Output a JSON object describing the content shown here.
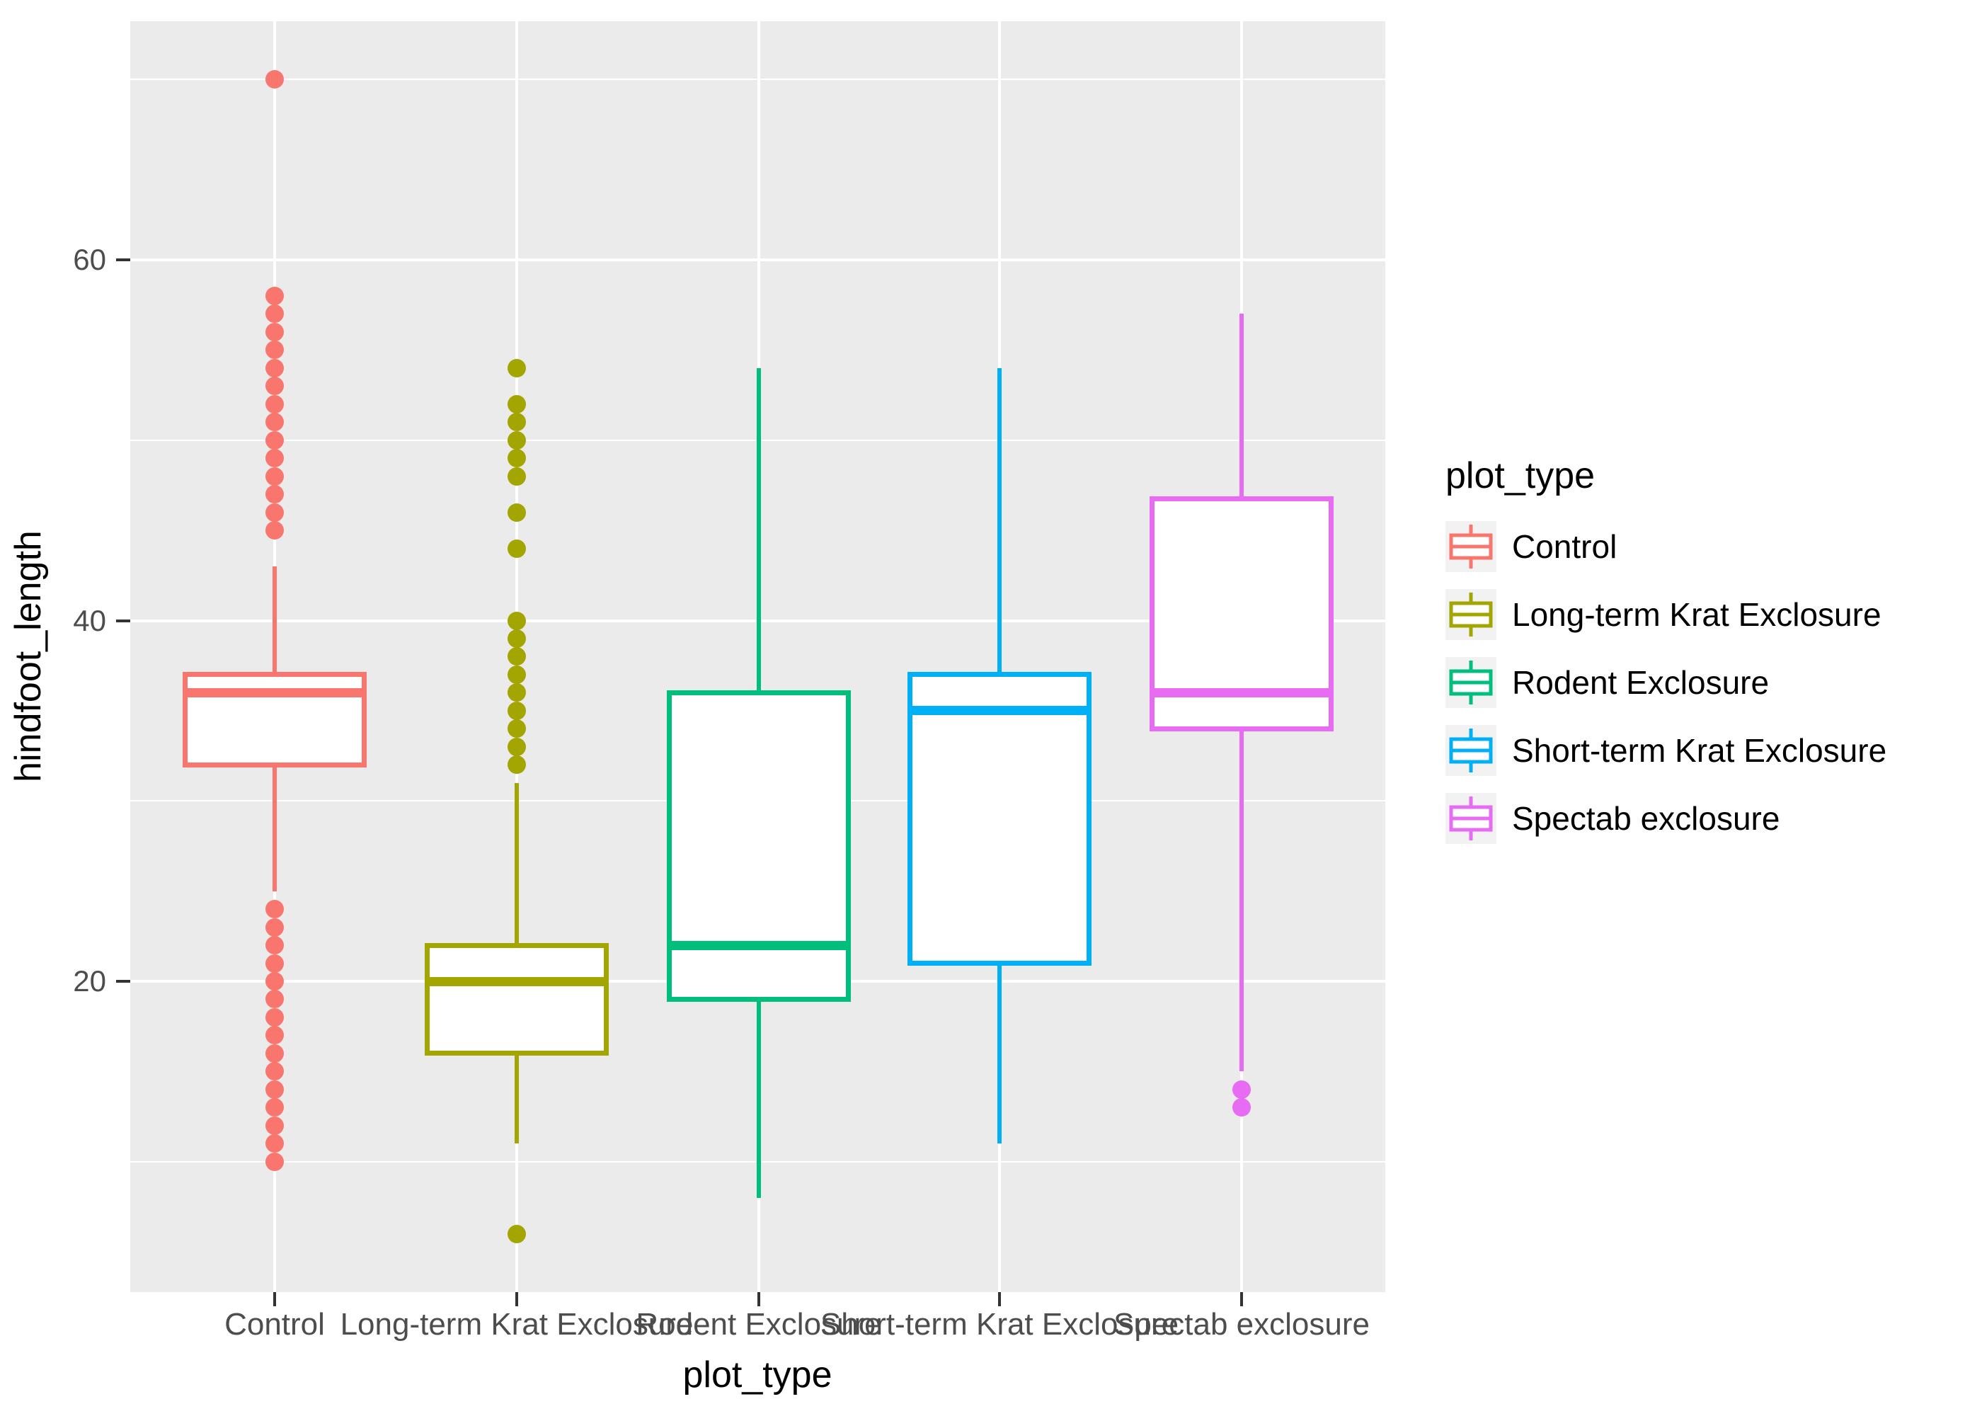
{
  "chart_data": {
    "type": "boxplot",
    "title": "",
    "xlabel": "plot_type",
    "ylabel": "hindfoot_length",
    "ylim": [
      3,
      73
    ],
    "y_major_ticks": [
      20,
      40,
      60
    ],
    "y_minor_gridlines": [
      10,
      30,
      50,
      70
    ],
    "grid": "on",
    "panel_background": "#EBEBEB",
    "grid_color": "#FFFFFF",
    "legend_position": "right",
    "legend_title": "plot_type",
    "categories": [
      "Control",
      "Long-term Krat Exclosure",
      "Rodent Exclosure",
      "Short-term Krat Exclosure",
      "Spectab exclosure"
    ],
    "series": [
      {
        "name": "Control",
        "color": "#F8766D",
        "whisker_low": 25,
        "q1": 32,
        "median": 36,
        "q3": 37,
        "whisker_high": 43,
        "outliers": [
          70,
          58,
          57,
          56,
          55,
          54,
          53,
          52,
          51,
          50,
          49,
          48,
          47,
          46,
          45,
          24,
          23,
          22,
          21,
          20,
          19,
          18,
          17,
          16,
          15,
          14,
          13,
          12,
          11,
          10
        ]
      },
      {
        "name": "Long-term Krat Exclosure",
        "color": "#A3A500",
        "whisker_low": 11,
        "q1": 16,
        "median": 20,
        "q3": 22,
        "whisker_high": 31,
        "outliers": [
          54,
          52,
          51,
          50,
          49,
          48,
          46,
          44,
          40,
          39,
          38,
          37,
          36,
          35,
          34,
          33,
          32,
          6
        ]
      },
      {
        "name": "Rodent Exclosure",
        "color": "#00BF7D",
        "whisker_low": 8,
        "q1": 19,
        "median": 22,
        "q3": 36,
        "whisker_high": 54,
        "outliers": []
      },
      {
        "name": "Short-term Krat Exclosure",
        "color": "#00B0F6",
        "whisker_low": 11,
        "q1": 21,
        "median": 35,
        "q3": 37,
        "whisker_high": 54,
        "outliers": []
      },
      {
        "name": "Spectab exclosure",
        "color": "#E76BF3",
        "whisker_low": 15,
        "q1": 34,
        "median": 36,
        "q3": 46.75,
        "whisker_high": 57,
        "outliers": [
          14,
          13
        ]
      }
    ]
  }
}
